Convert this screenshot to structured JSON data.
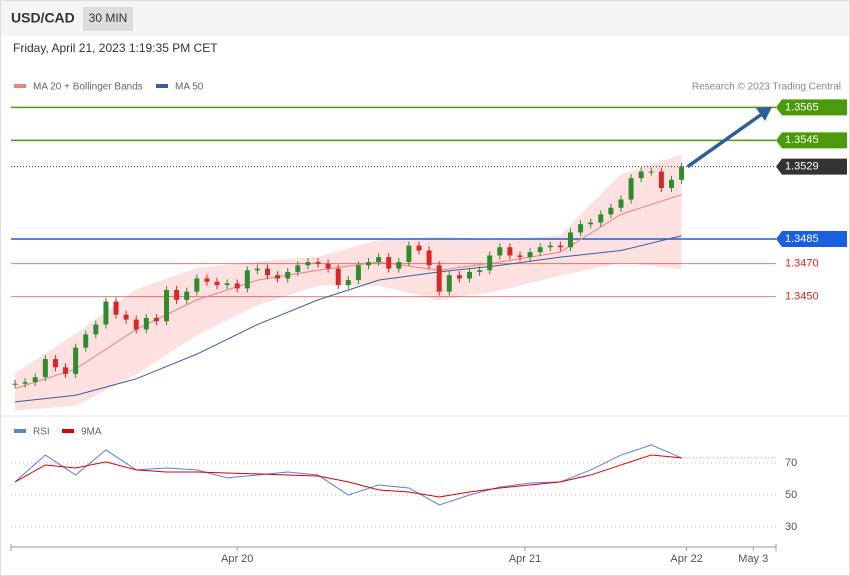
{
  "header": {
    "symbol": "USD/CAD",
    "interval": "30 MIN",
    "date": "Friday, April 21, 2023 1:19:35 PM CET",
    "credit": "Research © 2023 Trading Central"
  },
  "chart_data": [
    {
      "type": "candlestick",
      "xlim": [
        -0.4,
        75.35
      ],
      "ylim": [
        1.3378,
        1.3606
      ],
      "up_color": "#2e8b2e",
      "down_color": "#d62828",
      "close": [
        1.3397,
        1.3398,
        1.3401,
        1.3412,
        1.3407,
        1.3403,
        1.3419,
        1.3427,
        1.3433,
        1.3447,
        1.3439,
        1.3436,
        1.343,
        1.3437,
        1.3435,
        1.3454,
        1.3448,
        1.3453,
        1.3461,
        1.3459,
        1.3457,
        1.3458,
        1.3455,
        1.3466,
        1.3467,
        1.3463,
        1.3461,
        1.3465,
        1.3469,
        1.3471,
        1.347,
        1.3467,
        1.3457,
        1.346,
        1.3469,
        1.3471,
        1.3474,
        1.3467,
        1.3471,
        1.3481,
        1.3478,
        1.3469,
        1.3453,
        1.3463,
        1.3461,
        1.3465,
        1.3466,
        1.3475,
        1.348,
        1.3475,
        1.3474,
        1.3477,
        1.348,
        1.3481,
        1.348,
        1.3489,
        1.3494,
        1.3495,
        1.35,
        1.3504,
        1.3509,
        1.3522,
        1.3526,
        1.3526,
        1.3516,
        1.3521,
        1.3529
      ],
      "series": [
        {
          "name": "MA 20 + Bollinger Bands",
          "color": "#f08080",
          "band_color": "#fde0e0",
          "x": [
            0,
            6,
            12,
            18,
            24,
            30,
            36,
            42,
            48,
            54,
            60,
            66
          ],
          "values": [
            1.3394,
            1.3406,
            1.343,
            1.3448,
            1.346,
            1.3466,
            1.3471,
            1.3466,
            1.3471,
            1.3477,
            1.35,
            1.3512
          ],
          "upper": [
            1.3403,
            1.3427,
            1.3454,
            1.3467,
            1.3471,
            1.3474,
            1.3484,
            1.3486,
            1.3484,
            1.3487,
            1.3524,
            1.3536
          ],
          "lower": [
            1.3381,
            1.3384,
            1.3403,
            1.3427,
            1.3445,
            1.3457,
            1.3457,
            1.3448,
            1.3454,
            1.3463,
            1.3471,
            1.3467
          ]
        },
        {
          "name": "MA 50",
          "color": "#3a5fa0",
          "x": [
            0,
            6,
            12,
            18,
            24,
            30,
            36,
            42,
            48,
            54,
            60,
            66
          ],
          "values": [
            1.3386,
            1.339,
            1.34,
            1.3415,
            1.3433,
            1.3448,
            1.346,
            1.3465,
            1.3469,
            1.3474,
            1.3478,
            1.3487
          ]
        }
      ],
      "levels": [
        {
          "value": 1.3565,
          "label": "1.3565",
          "color": "#4a9a0a",
          "boxed": true
        },
        {
          "value": 1.3545,
          "label": "1.3545",
          "color": "#4a9a0a",
          "boxed": true
        },
        {
          "value": 1.3529,
          "label": "1.3529",
          "color": "#333333",
          "boxed": true
        },
        {
          "value": 1.3485,
          "label": "1.3485",
          "color": "#1a5fe0",
          "boxed": true
        },
        {
          "value": 1.347,
          "label": "1.3470",
          "color": "#d62828",
          "boxed": false
        },
        {
          "value": 1.345,
          "label": "1.3450",
          "color": "#d62828",
          "boxed": false
        }
      ]
    },
    {
      "type": "line",
      "xlim": [
        -0.4,
        75.35
      ],
      "ylim": [
        21.9,
        84.4
      ],
      "yticks": [
        30,
        50,
        70
      ],
      "xticks": [
        {
          "value": 22,
          "label": "Apr 20"
        },
        {
          "value": 50.5,
          "label": "Apr 21"
        },
        {
          "value": 66.5,
          "label": "Apr 22"
        },
        {
          "value": 73.1,
          "label": "May 3"
        }
      ],
      "series": [
        {
          "name": "RSI",
          "color": "#5b7fd6",
          "x": [
            0,
            3,
            6,
            9,
            12,
            15,
            18,
            21,
            24,
            27,
            30,
            33,
            36,
            39,
            42,
            45,
            48,
            51,
            54,
            57,
            60,
            63,
            66
          ],
          "values": [
            58.2,
            75.0,
            62.5,
            78.2,
            65.7,
            66.9,
            65.7,
            60.7,
            62.5,
            64.4,
            62.5,
            50.0,
            56.3,
            54.4,
            43.8,
            50.0,
            55.0,
            57.5,
            58.2,
            65.7,
            75.0,
            81.3,
            73.2
          ]
        },
        {
          "name": "9MA",
          "color": "#e00000",
          "x": [
            0,
            3,
            6,
            9,
            12,
            15,
            18,
            21,
            24,
            27,
            30,
            33,
            36,
            39,
            42,
            45,
            48,
            51,
            54,
            57,
            60,
            63,
            66
          ],
          "values": [
            58.2,
            68.8,
            66.9,
            70.7,
            65.7,
            64.4,
            64.4,
            63.8,
            63.2,
            62.5,
            61.9,
            58.2,
            53.2,
            51.9,
            48.8,
            51.9,
            54.4,
            56.3,
            58.2,
            62.5,
            68.8,
            75.0,
            73.2
          ]
        }
      ]
    }
  ]
}
